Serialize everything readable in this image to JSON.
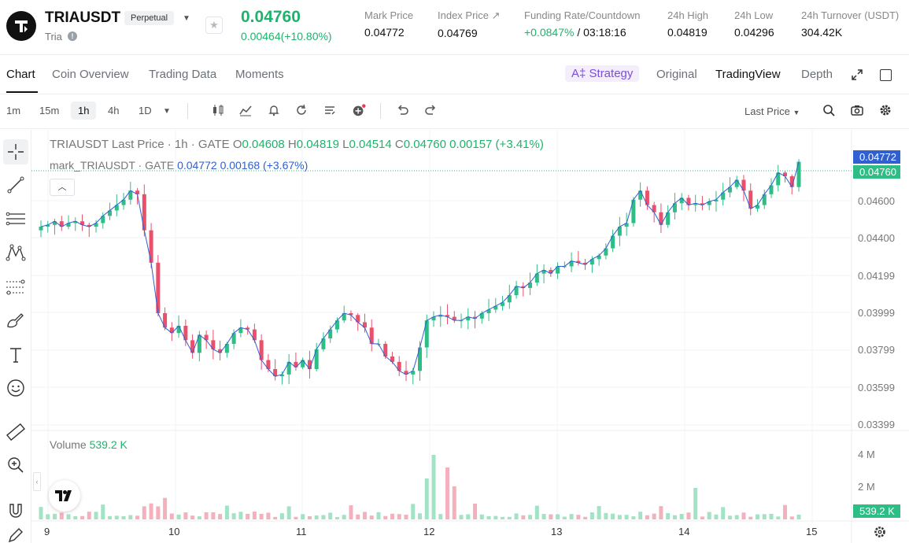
{
  "header": {
    "symbol": "TRIAUSDT",
    "badge": "Perpetual",
    "subtitle": "Tria",
    "last_price": "0.04760",
    "change": "0.00464(+10.80%)",
    "stats": [
      {
        "label": "Mark Price",
        "value": "0.04772"
      },
      {
        "label": "Index Price ↗",
        "value": "0.04769"
      },
      {
        "label": "Funding Rate/Countdown",
        "value_green": "+0.0847%",
        "value": " / 03:18:16"
      },
      {
        "label": "24h High",
        "value": "0.04819"
      },
      {
        "label": "24h Low",
        "value": "0.04296"
      },
      {
        "label": "24h Turnover (USDT)",
        "value": "304.42K"
      }
    ]
  },
  "tabs": [
    "Chart",
    "Coin Overview",
    "Trading Data",
    "Moments"
  ],
  "right_tabs": {
    "strategy": "Strategy",
    "original": "Original",
    "tradingview": "TradingView",
    "depth": "Depth"
  },
  "toolbar": {
    "timeframes": [
      "1m",
      "15m",
      "1h",
      "4h",
      "1D"
    ],
    "active_timeframe": "1h",
    "price_source": "Last Price"
  },
  "legend": {
    "title": "TRIAUSDT Last Price · 1h · GATE",
    "o_label": "O",
    "o": "0.04608",
    "h_label": "H",
    "h": "0.04819",
    "l_label": "L",
    "l": "0.04514",
    "c_label": "C",
    "c": "0.04760",
    "delta": "0.00157 (+3.41%)",
    "mark_label": "mark_TRIAUSDT · GATE",
    "mark_value": "0.04772",
    "mark_delta": "0.00168 (+3.67%)"
  },
  "volume": {
    "label": "Volume",
    "value": "539.2 K"
  },
  "colors": {
    "up": "#2ebd85",
    "down": "#e8506b",
    "mark": "#2f5fd1",
    "accent": "#7b4fd8"
  },
  "price_axis": [
    "0.04600",
    "0.04400",
    "0.04199",
    "0.03999",
    "0.03799",
    "0.03599",
    "0.03399"
  ],
  "volume_axis": [
    "4 M",
    "2 M"
  ],
  "mark_tag": "0.04772",
  "last_tag": "0.04760",
  "volume_tag": "539.2 K",
  "time_axis": [
    "9",
    "10",
    "11",
    "12",
    "13",
    "14",
    "15"
  ],
  "chart_data": {
    "type": "candlestick",
    "note_series": "approximate hourly closes",
    "closes": [
      0.044,
      0.0441,
      0.0443,
      0.044,
      0.0442,
      0.0443,
      0.0441,
      0.044,
      0.0442,
      0.0446,
      0.0449,
      0.0452,
      0.0455,
      0.046,
      0.0458,
      0.0438,
      0.042,
      0.0392,
      0.0384,
      0.0381,
      0.0385,
      0.0377,
      0.037,
      0.038,
      0.0377,
      0.0372,
      0.037,
      0.0375,
      0.0381,
      0.0384,
      0.0383,
      0.0377,
      0.0366,
      0.0361,
      0.0357,
      0.0358,
      0.0365,
      0.0362,
      0.0366,
      0.0361,
      0.0372,
      0.0378,
      0.0383,
      0.0388,
      0.0392,
      0.0391,
      0.0387,
      0.0384,
      0.0375,
      0.0375,
      0.0368,
      0.0365,
      0.036,
      0.0358,
      0.036,
      0.0373,
      0.0388,
      0.039,
      0.0391,
      0.039,
      0.0388,
      0.0388,
      0.039,
      0.0389,
      0.0392,
      0.0394,
      0.0396,
      0.0398,
      0.0402,
      0.0407,
      0.0406,
      0.0409,
      0.0414,
      0.0416,
      0.0414,
      0.0418,
      0.0418,
      0.0421,
      0.042,
      0.0419,
      0.0422,
      0.0424,
      0.0428,
      0.0435,
      0.044,
      0.0442,
      0.0455,
      0.046,
      0.0452,
      0.0448,
      0.0441,
      0.0448,
      0.0453,
      0.0456,
      0.0452,
      0.0453,
      0.0452,
      0.0454,
      0.0455,
      0.0459,
      0.0462,
      0.0466,
      0.046,
      0.045,
      0.0452,
      0.0458,
      0.0463,
      0.047,
      0.0468,
      0.0462,
      0.0476
    ],
    "ylim": [
      0.033,
      0.0485
    ]
  }
}
